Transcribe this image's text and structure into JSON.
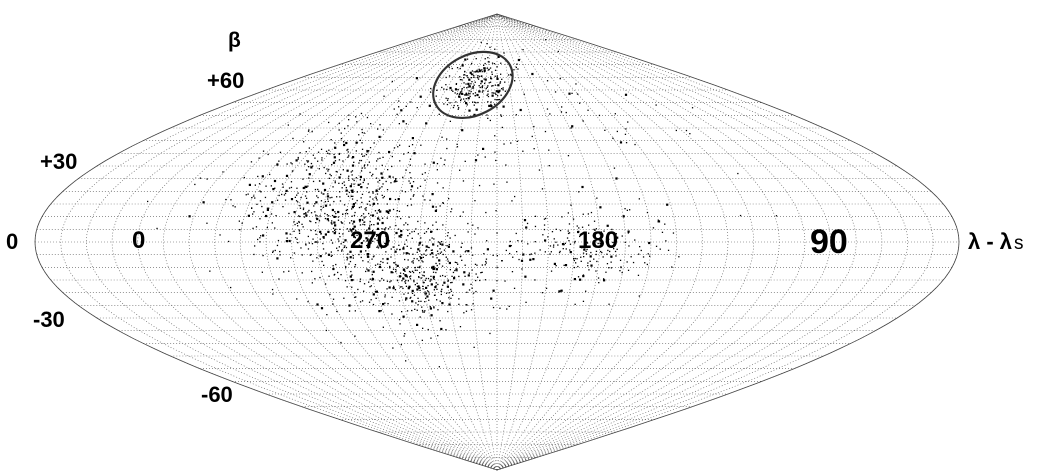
{
  "chart_data": {
    "type": "scatter",
    "projection": "sinusoidal (equal-area) all-sky map",
    "grid": true,
    "grid_style": "dotted meridians and parallels",
    "x_axis": {
      "symbol": "λ - λ",
      "subscript": "s",
      "tick_labels": [
        "0",
        "0",
        "270",
        "180",
        "90"
      ]
    },
    "y_axis": {
      "symbol": "β",
      "tick_labels": [
        "+60",
        "+30",
        "0",
        "-30",
        "-60"
      ]
    },
    "marked_region": {
      "shape": "ellipse",
      "center_lambda_minus_lambda_s": 245,
      "center_beta": 62
    },
    "point_clusters": [
      {
        "lambda_minus_lambda_s": 295,
        "beta": 22,
        "spread": [
          22,
          15
        ],
        "density": "high"
      },
      {
        "lambda_minus_lambda_s": 280,
        "beta": 5,
        "spread": [
          18,
          16
        ],
        "density": "high"
      },
      {
        "lambda_minus_lambda_s": 255,
        "beta": -12,
        "spread": [
          14,
          10
        ],
        "density": "high"
      },
      {
        "lambda_minus_lambda_s": 245,
        "beta": 62,
        "spread": [
          14,
          6
        ],
        "density": "medium"
      },
      {
        "lambda_minus_lambda_s": 190,
        "beta": -2,
        "spread": [
          16,
          8
        ],
        "density": "medium"
      },
      {
        "lambda_minus_lambda_s": 200,
        "beta": 45,
        "spread": [
          40,
          20
        ],
        "density": "low"
      }
    ],
    "points_color": "#000000",
    "grid_color": "#555555"
  },
  "labels": {
    "beta": "β",
    "lat_p60": "+60",
    "lat_p30": "+30",
    "lat_0": "0",
    "lat_m30": "-30",
    "lat_m60": "-60",
    "lon_0": "0",
    "lon_270": "270",
    "lon_180": "180",
    "lon_90": "90",
    "x_symbol": "λ - λ",
    "x_subscript": "s"
  }
}
